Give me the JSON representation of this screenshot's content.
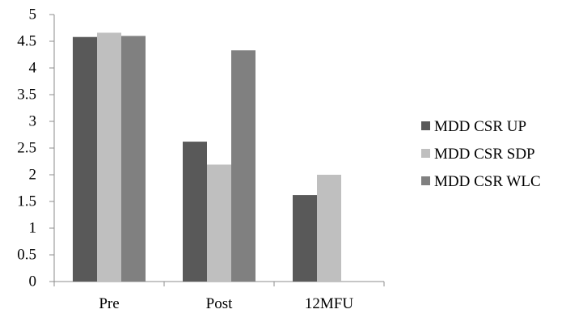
{
  "chart_data": {
    "type": "bar",
    "categories": [
      "Pre",
      "Post",
      "12MFU"
    ],
    "series": [
      {
        "name": "MDD CSR UP",
        "values": [
          4.58,
          2.62,
          1.62
        ]
      },
      {
        "name": "MDD CSR SDP",
        "values": [
          4.66,
          2.19,
          2.0
        ]
      },
      {
        "name": "MDD CSR WLC",
        "values": [
          4.6,
          4.33,
          null
        ]
      }
    ],
    "colors": [
      "#595959",
      "#bfbfbf",
      "#808080"
    ],
    "ylim": [
      0,
      5
    ],
    "yticks": [
      "0",
      "0.5",
      "1",
      "1.5",
      "2",
      "2.5",
      "3",
      "3.5",
      "4",
      "4.5",
      "5"
    ],
    "grid": false,
    "legend_position": "right",
    "title": "",
    "xlabel": "",
    "ylabel": ""
  }
}
